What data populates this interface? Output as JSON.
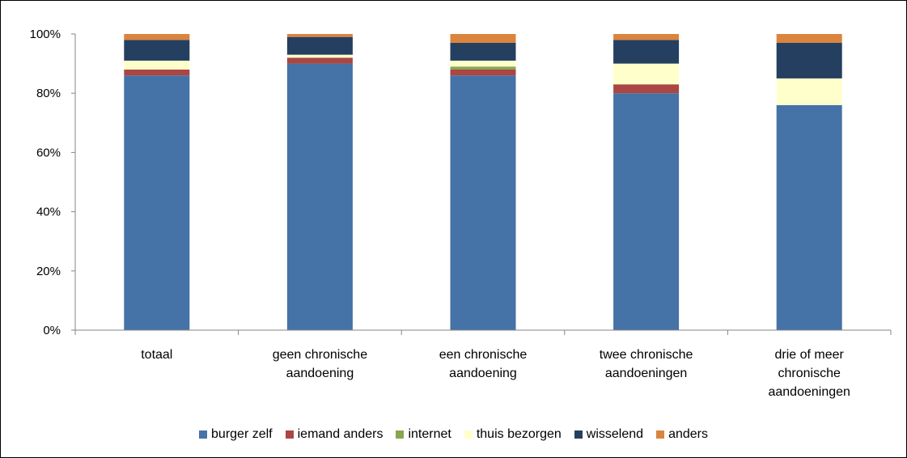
{
  "chart_data": {
    "type": "bar",
    "stacked": true,
    "categories": [
      [
        "totaal"
      ],
      [
        "geen chronische",
        "aandoening"
      ],
      [
        "een chronische",
        "aandoening"
      ],
      [
        "twee chronische",
        "aandoeningen"
      ],
      [
        "drie of meer",
        "chronische",
        "aandoeningen"
      ]
    ],
    "series": [
      {
        "name": "burger zelf",
        "color": "#4572A7",
        "values": [
          86,
          90,
          86,
          80,
          76
        ]
      },
      {
        "name": "iemand anders",
        "color": "#AA4643",
        "values": [
          2,
          2,
          2,
          3,
          0
        ]
      },
      {
        "name": "internet",
        "color": "#89A54E",
        "values": [
          0,
          0,
          1,
          0,
          0
        ]
      },
      {
        "name": "thuis bezorgen",
        "color": "#FFFFCC",
        "values": [
          3,
          1,
          2,
          7,
          9
        ]
      },
      {
        "name": "wisselend",
        "color": "#243F60",
        "values": [
          7,
          6,
          6,
          8,
          12
        ]
      },
      {
        "name": "anders",
        "color": "#DB843D",
        "values": [
          2,
          1,
          3,
          2,
          3
        ]
      }
    ],
    "ylim": [
      0,
      100
    ],
    "yticks": [
      "0%",
      "20%",
      "40%",
      "60%",
      "80%",
      "100%"
    ],
    "grid": false,
    "legend_position": "bottom"
  }
}
